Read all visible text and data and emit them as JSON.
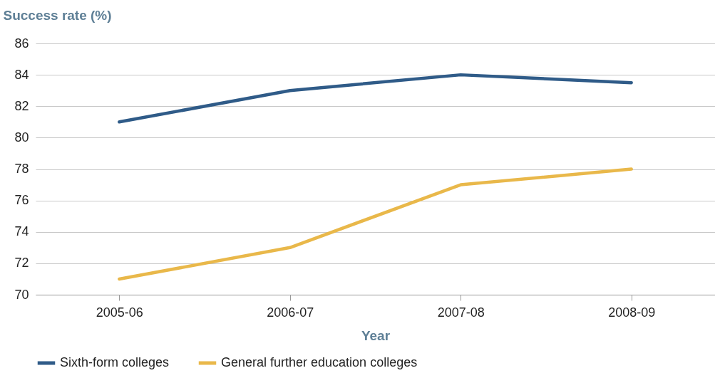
{
  "chart_data": {
    "type": "line",
    "ylabel": "Success rate (%)",
    "xlabel": "Year",
    "categories": [
      "2005-06",
      "2006-07",
      "2007-08",
      "2008-09"
    ],
    "series": [
      {
        "name": "Sixth-form colleges",
        "color": "#2f5b88",
        "values": [
          81,
          83,
          84,
          83.5
        ]
      },
      {
        "name": "General further education colleges",
        "color": "#e9b84a",
        "values": [
          71,
          73,
          77,
          78
        ]
      }
    ],
    "ylim": [
      70,
      86
    ],
    "yticks": [
      70,
      72,
      74,
      76,
      78,
      80,
      82,
      84,
      86
    ],
    "grid": "y",
    "legend": "bottom left",
    "marker": "none",
    "line_style": "solid"
  }
}
